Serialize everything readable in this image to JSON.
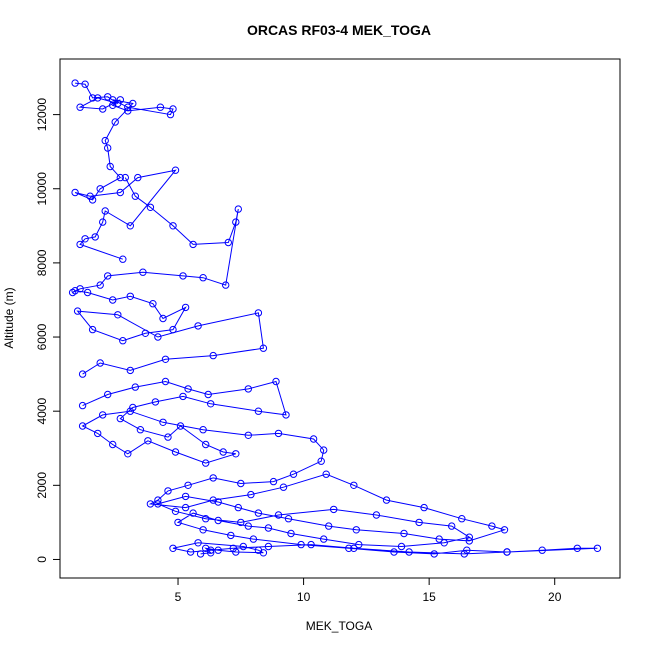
{
  "chart_data": {
    "type": "line",
    "markers": "open-circle",
    "title": "ORCAS RF03-4 MEK_TOGA",
    "xlabel": "MEK_TOGA",
    "ylabel": "Altitude (m)",
    "xlim": [
      0.3,
      22.6
    ],
    "ylim": [
      -500,
      13500
    ],
    "xticks": [
      5,
      10,
      15,
      20
    ],
    "yticks": [
      0,
      2000,
      4000,
      6000,
      8000,
      10000,
      12000
    ],
    "grid": false,
    "legend": "none",
    "color": "#0000ff",
    "series": [
      {
        "x": [
          0.9,
          1.3,
          1.6,
          2.2,
          2.6,
          1.8,
          1.1,
          2.0,
          2.7,
          2.4,
          3.0,
          4.3,
          4.8,
          4.7,
          3.0,
          2.4,
          3.2,
          2.5,
          2.1,
          2.2,
          2.3,
          2.7,
          1.9,
          1.6,
          0.9,
          1.5,
          2.7,
          3.4,
          4.9,
          3.1,
          2.1,
          2.0,
          1.7,
          1.3,
          1.1,
          2.8
        ],
        "y": [
          12850,
          12820,
          12450,
          12480,
          12300,
          12450,
          12200,
          12150,
          12400,
          12250,
          12100,
          12200,
          12150,
          12000,
          12200,
          12400,
          12300,
          11800,
          11300,
          11100,
          10600,
          10300,
          10000,
          9700,
          9900,
          9800,
          9900,
          10300,
          10500,
          9000,
          9400,
          9100,
          8700,
          8650,
          8500,
          8100
        ]
      },
      {
        "x": [
          2.9,
          3.3,
          3.9,
          4.8,
          5.6,
          7.0,
          7.3,
          7.4,
          6.9,
          6.0,
          5.2,
          3.6,
          2.2,
          1.9,
          1.1,
          0.8,
          0.9,
          1.4,
          2.4,
          3.1,
          4.0,
          4.4,
          5.3,
          4.8,
          3.7,
          2.8,
          1.6,
          1.0,
          2.6,
          4.2,
          5.8,
          8.2,
          8.4,
          6.4,
          4.5,
          3.1,
          1.9,
          1.2
        ],
        "y": [
          10300,
          9800,
          9500,
          9000,
          8500,
          8550,
          9100,
          9450,
          7400,
          7600,
          7650,
          7750,
          7650,
          7400,
          7300,
          7200,
          7250,
          7200,
          7000,
          7100,
          6900,
          6500,
          6800,
          6200,
          6100,
          5900,
          6200,
          6700,
          6600,
          6000,
          6300,
          6650,
          5700,
          5500,
          5400,
          5100,
          5300,
          5000
        ]
      },
      {
        "x": [
          1.2,
          2.2,
          3.3,
          4.5,
          5.4,
          6.2,
          7.8,
          8.9,
          9.3,
          8.2,
          6.3,
          5.2,
          4.1,
          3.2,
          2.7,
          3.5,
          4.6,
          5.1,
          6.1,
          6.8,
          7.3,
          6.1,
          4.9,
          3.8,
          3.0,
          2.4,
          1.8,
          1.2,
          2.0,
          3.1,
          4.4,
          6.0,
          7.8,
          9.0,
          10.4,
          10.8,
          10.7,
          9.6,
          8.8,
          7.5,
          6.4,
          5.4,
          4.6,
          4.2,
          3.9,
          5.3,
          6.4,
          7.9,
          9.2,
          10.9,
          12.0,
          13.3,
          14.8,
          16.3,
          17.5,
          18.0,
          16.6,
          15.4,
          14.0,
          12.1,
          11.0,
          9.4,
          8.2,
          7.4,
          6.6,
          5.3,
          4.2,
          4.9,
          6.1,
          7.5,
          9.0,
          11.2,
          12.9,
          14.6,
          15.9,
          16.6,
          15.6,
          13.9,
          12.2,
          10.8,
          9.5,
          8.6,
          7.8,
          6.6,
          5.6,
          5.0,
          6.0,
          7.1,
          8.0,
          9.9,
          11.8,
          13.6,
          15.2,
          16.5,
          18.1,
          19.5,
          20.9,
          21.7,
          18.1,
          16.4,
          14.2,
          12.0,
          10.3,
          8.6,
          7.2,
          6.3,
          5.5,
          4.8,
          5.8,
          7.6,
          8.2,
          8.4,
          7.3,
          6.6,
          6.1,
          6.3,
          5.9
        ],
        "y": [
          4150,
          4450,
          4650,
          4800,
          4600,
          4450,
          4600,
          4800,
          3900,
          4000,
          4200,
          4400,
          4250,
          4100,
          3800,
          3500,
          3300,
          3600,
          3100,
          2900,
          2850,
          2600,
          2900,
          3200,
          2850,
          3100,
          3400,
          3600,
          3900,
          4000,
          3700,
          3500,
          3350,
          3400,
          3250,
          2950,
          2650,
          2300,
          2100,
          2050,
          2200,
          2000,
          1850,
          1600,
          1500,
          1400,
          1600,
          1750,
          1950,
          2300,
          2000,
          1600,
          1400,
          1100,
          900,
          800,
          500,
          550,
          700,
          800,
          900,
          1100,
          1250,
          1400,
          1550,
          1700,
          1500,
          1300,
          1100,
          1000,
          1200,
          1350,
          1200,
          1000,
          900,
          600,
          450,
          350,
          400,
          550,
          700,
          850,
          900,
          1050,
          1250,
          1000,
          800,
          650,
          550,
          400,
          300,
          200,
          150,
          250,
          200,
          250,
          300,
          300,
          200,
          150,
          200,
          300,
          400,
          350,
          300,
          250,
          200,
          300,
          450,
          350,
          250,
          180,
          200,
          250,
          300,
          180,
          150
        ]
      }
    ]
  }
}
